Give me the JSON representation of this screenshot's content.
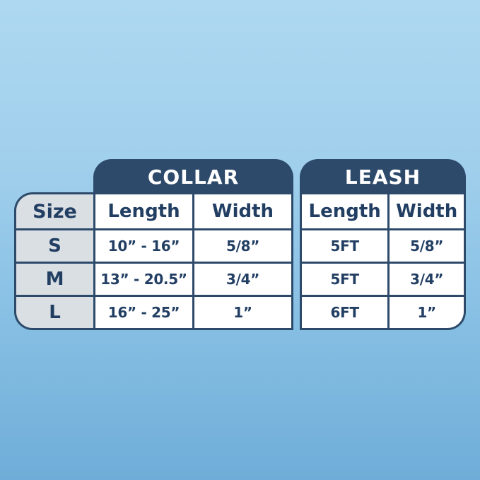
{
  "colors": {
    "navy_band": "#2d4a6b",
    "navy_text": "#223f63",
    "size_column_bg": "#d9dfe3",
    "cell_bg": "#ffffff",
    "background_top": "#aed8f1",
    "background_bottom": "#6fadd8"
  },
  "chart_data": {
    "type": "table",
    "row_header": "Size",
    "row_labels": [
      "S",
      "M",
      "L"
    ],
    "sections": [
      {
        "title": "COLLAR",
        "columns": [
          "Length",
          "Width"
        ],
        "rows": [
          [
            "10” - 16”",
            "5/8”"
          ],
          [
            "13” - 20.5”",
            "3/4”"
          ],
          [
            "16” - 25”",
            "1”"
          ]
        ]
      },
      {
        "title": "LEASH",
        "columns": [
          "Length",
          "Width"
        ],
        "rows": [
          [
            "5FT",
            "5/8”"
          ],
          [
            "5FT",
            "3/4”"
          ],
          [
            "6FT",
            "1”"
          ]
        ]
      }
    ]
  }
}
